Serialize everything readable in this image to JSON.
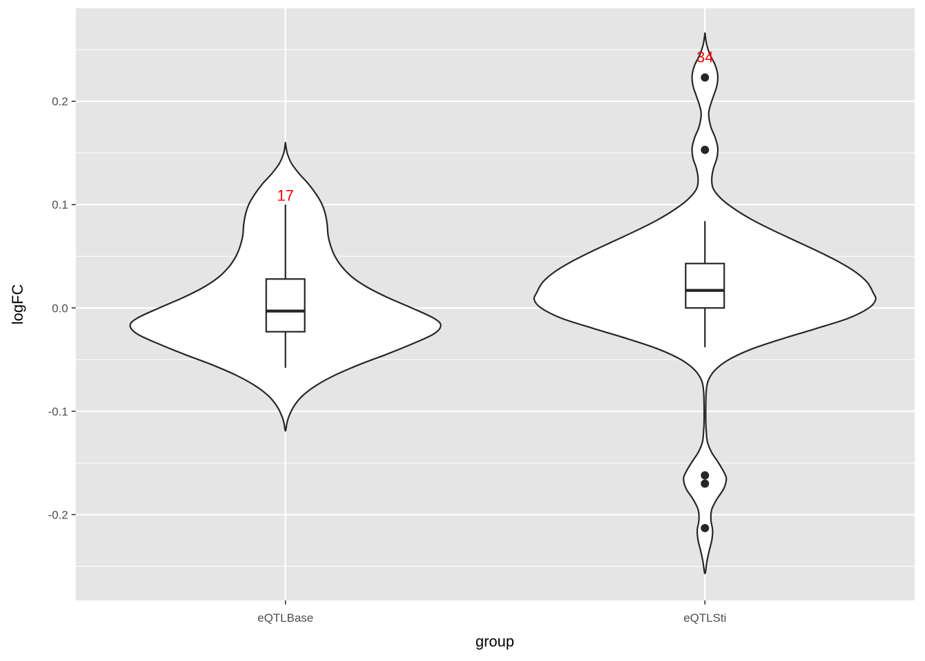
{
  "chart_data": {
    "type": "violin",
    "xlabel": "group",
    "ylabel": "logFC",
    "ylim": [
      -0.283,
      0.29
    ],
    "yticks": [
      -0.2,
      -0.1,
      0.0,
      0.1,
      0.2
    ],
    "ytick_labels": [
      "-0.2",
      "-0.1",
      "0.0",
      "0.1",
      "0.2"
    ],
    "grid": true,
    "panel_background": "#e5e5e5",
    "grid_color": "#ffffff",
    "violin_fill": "#ffffff",
    "outline_color": "#262626",
    "categories": [
      "eQTLBase",
      "eQTLSti"
    ],
    "groups": [
      {
        "name": "eQTLBase",
        "box": {
          "lower_whisker": -0.058,
          "q1": -0.023,
          "median": -0.003,
          "q3": 0.028,
          "upper_whisker": 0.1
        },
        "outliers": [],
        "density": [
          [
            0.16,
            0.0
          ],
          [
            0.15,
            0.01
          ],
          [
            0.14,
            0.035
          ],
          [
            0.13,
            0.08
          ],
          [
            0.12,
            0.135
          ],
          [
            0.11,
            0.18
          ],
          [
            0.1,
            0.215
          ],
          [
            0.09,
            0.235
          ],
          [
            0.08,
            0.245
          ],
          [
            0.07,
            0.25
          ],
          [
            0.06,
            0.265
          ],
          [
            0.05,
            0.29
          ],
          [
            0.04,
            0.33
          ],
          [
            0.03,
            0.39
          ],
          [
            0.02,
            0.48
          ],
          [
            0.01,
            0.6
          ],
          [
            0.0,
            0.74
          ],
          [
            -0.01,
            0.87
          ],
          [
            -0.017,
            0.91
          ],
          [
            -0.025,
            0.87
          ],
          [
            -0.035,
            0.74
          ],
          [
            -0.045,
            0.59
          ],
          [
            -0.055,
            0.43
          ],
          [
            -0.065,
            0.29
          ],
          [
            -0.075,
            0.18
          ],
          [
            -0.085,
            0.1
          ],
          [
            -0.095,
            0.05
          ],
          [
            -0.105,
            0.02
          ],
          [
            -0.112,
            0.008
          ],
          [
            -0.119,
            0.0
          ]
        ],
        "annotation": {
          "text": "17",
          "y": 0.109,
          "color": "#ff0000"
        }
      },
      {
        "name": "eQTLSti",
        "box": {
          "lower_whisker": -0.038,
          "q1": 0.0,
          "median": 0.017,
          "q3": 0.043,
          "upper_whisker": 0.084
        },
        "outliers": [
          0.223,
          0.153,
          -0.162,
          -0.17,
          -0.213
        ],
        "density": [
          [
            0.266,
            0.0
          ],
          [
            0.255,
            0.01
          ],
          [
            0.245,
            0.03
          ],
          [
            0.235,
            0.06
          ],
          [
            0.225,
            0.075
          ],
          [
            0.215,
            0.07
          ],
          [
            0.205,
            0.05
          ],
          [
            0.195,
            0.03
          ],
          [
            0.187,
            0.022
          ],
          [
            0.175,
            0.035
          ],
          [
            0.165,
            0.06
          ],
          [
            0.155,
            0.075
          ],
          [
            0.145,
            0.07
          ],
          [
            0.135,
            0.05
          ],
          [
            0.125,
            0.04
          ],
          [
            0.115,
            0.05
          ],
          [
            0.105,
            0.1
          ],
          [
            0.095,
            0.18
          ],
          [
            0.085,
            0.28
          ],
          [
            0.075,
            0.4
          ],
          [
            0.065,
            0.53
          ],
          [
            0.055,
            0.66
          ],
          [
            0.045,
            0.78
          ],
          [
            0.035,
            0.88
          ],
          [
            0.025,
            0.95
          ],
          [
            0.015,
            0.985
          ],
          [
            0.008,
            1.0
          ],
          [
            0.0,
            0.96
          ],
          [
            -0.01,
            0.84
          ],
          [
            -0.02,
            0.65
          ],
          [
            -0.03,
            0.45
          ],
          [
            -0.04,
            0.27
          ],
          [
            -0.05,
            0.14
          ],
          [
            -0.06,
            0.06
          ],
          [
            -0.07,
            0.02
          ],
          [
            -0.08,
            0.008
          ],
          [
            -0.095,
            0.005
          ],
          [
            -0.11,
            0.005
          ],
          [
            -0.12,
            0.008
          ],
          [
            -0.13,
            0.015
          ],
          [
            -0.14,
            0.04
          ],
          [
            -0.15,
            0.08
          ],
          [
            -0.16,
            0.115
          ],
          [
            -0.166,
            0.125
          ],
          [
            -0.175,
            0.11
          ],
          [
            -0.185,
            0.07
          ],
          [
            -0.195,
            0.04
          ],
          [
            -0.205,
            0.035
          ],
          [
            -0.215,
            0.045
          ],
          [
            -0.225,
            0.04
          ],
          [
            -0.235,
            0.025
          ],
          [
            -0.245,
            0.012
          ],
          [
            -0.257,
            0.0
          ]
        ],
        "annotation": {
          "text": "34",
          "y": 0.243,
          "color": "#ff0000"
        }
      }
    ]
  }
}
